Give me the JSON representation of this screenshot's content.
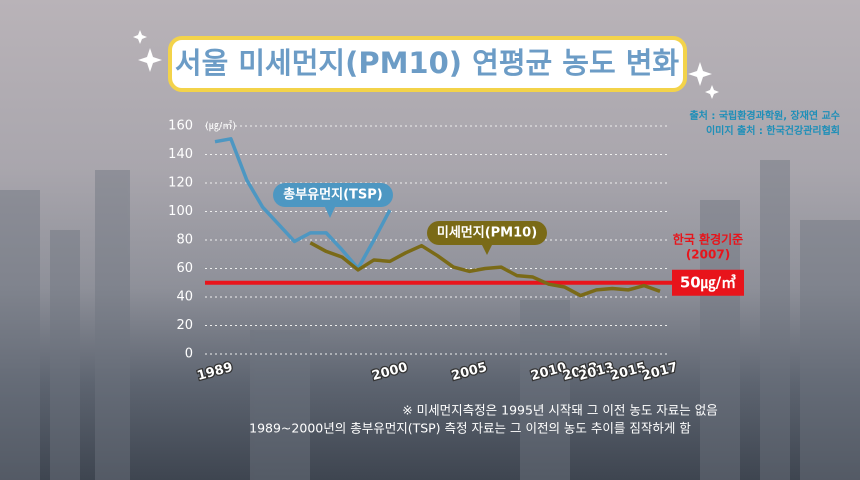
{
  "chart_data": {
    "type": "line",
    "title": "서울 미세먼지(PM10) 연평균 농도 변화",
    "y_unit": "(㎍/㎥)",
    "x": [
      1989,
      1990,
      1991,
      1992,
      1993,
      1994,
      1995,
      1996,
      1997,
      1998,
      1999,
      2000,
      2001,
      2002,
      2003,
      2004,
      2005,
      2006,
      2007,
      2008,
      2009,
      2010,
      2011,
      2012,
      2013,
      2014,
      2015,
      2016,
      2017
    ],
    "xlim": [
      1989,
      2017
    ],
    "xticks": [
      1989,
      2000,
      2005,
      2010,
      2012,
      2013,
      2015,
      2017
    ],
    "ylim": [
      0,
      160
    ],
    "yticks": [
      0,
      20,
      40,
      60,
      80,
      100,
      120,
      140,
      160
    ],
    "grid": true,
    "series": [
      {
        "name": "총부유먼지(TSP)",
        "color": "#4d97c2",
        "values": [
          149,
          151,
          122,
          103,
          91,
          79,
          85,
          85,
          73,
          60,
          80,
          101,
          null,
          null,
          null,
          null,
          null,
          null,
          null,
          null,
          null,
          null,
          null,
          null,
          null,
          null,
          null,
          null,
          null
        ]
      },
      {
        "name": "미세먼지(PM10)",
        "color": "#7a6a17",
        "values": [
          null,
          null,
          null,
          null,
          null,
          null,
          78,
          72,
          68,
          59,
          66,
          65,
          71,
          76,
          69,
          61,
          58,
          60,
          61,
          55,
          54,
          49,
          47,
          41,
          45,
          46,
          45,
          48,
          44
        ]
      }
    ],
    "reference_line": {
      "value": 50,
      "label": "50㎍/㎥",
      "color": "#e8141b",
      "note": [
        "한국 환경기준",
        "(2007)"
      ]
    },
    "sources": [
      "출처 : 국립환경과학원, 장재연 교수",
      "이미지 출처 : 한국건강관리협회"
    ],
    "footnotes": [
      "※ 미세먼지측정은 1995년 시작돼 그 이전 농도 자료는 없음",
      "1989~2000년의 총부유먼지(TSP) 측정 자료는 그 이전의 농도 추이를 짐작하게 함"
    ]
  }
}
